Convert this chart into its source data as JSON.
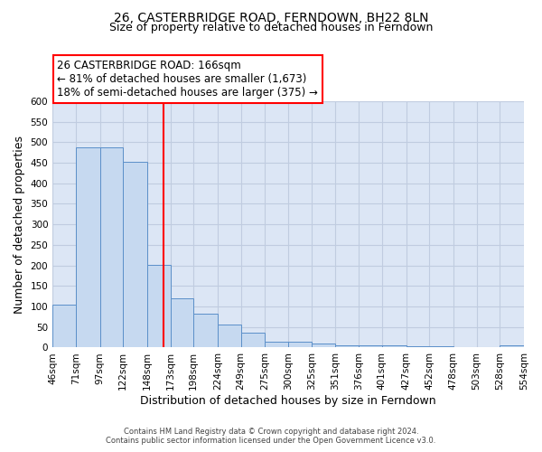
{
  "title": "26, CASTERBRIDGE ROAD, FERNDOWN, BH22 8LN",
  "subtitle": "Size of property relative to detached houses in Ferndown",
  "xlabel": "Distribution of detached houses by size in Ferndown",
  "ylabel": "Number of detached properties",
  "bar_edges": [
    46,
    71,
    97,
    122,
    148,
    173,
    198,
    224,
    249,
    275,
    300,
    325,
    351,
    376,
    401,
    427,
    452,
    478,
    503,
    528,
    554
  ],
  "bar_heights": [
    105,
    488,
    488,
    452,
    202,
    120,
    83,
    57,
    36,
    15,
    15,
    10,
    5,
    5,
    5,
    4,
    4,
    1,
    0,
    5
  ],
  "bar_color": "#c6d9f0",
  "bar_edge_color": "#5b8fc9",
  "property_line_x": 166,
  "property_line_color": "red",
  "annotation_box_text": "26 CASTERBRIDGE ROAD: 166sqm\n← 81% of detached houses are smaller (1,673)\n18% of semi-detached houses are larger (375) →",
  "annotation_box_color": "white",
  "annotation_box_edge_color": "red",
  "ylim": [
    0,
    600
  ],
  "yticks": [
    0,
    50,
    100,
    150,
    200,
    250,
    300,
    350,
    400,
    450,
    500,
    550,
    600
  ],
  "tick_labels": [
    "46sqm",
    "71sqm",
    "97sqm",
    "122sqm",
    "148sqm",
    "173sqm",
    "198sqm",
    "224sqm",
    "249sqm",
    "275sqm",
    "300sqm",
    "325sqm",
    "351sqm",
    "376sqm",
    "401sqm",
    "427sqm",
    "452sqm",
    "478sqm",
    "503sqm",
    "528sqm",
    "554sqm"
  ],
  "footer_line1": "Contains HM Land Registry data © Crown copyright and database right 2024.",
  "footer_line2": "Contains public sector information licensed under the Open Government Licence v3.0.",
  "fig_bg_color": "#ffffff",
  "plot_bg_color": "#dce6f5",
  "grid_color": "#c0cce0",
  "title_fontsize": 10,
  "subtitle_fontsize": 9,
  "label_fontsize": 9,
  "tick_fontsize": 7.5,
  "ann_fontsize": 8.5
}
